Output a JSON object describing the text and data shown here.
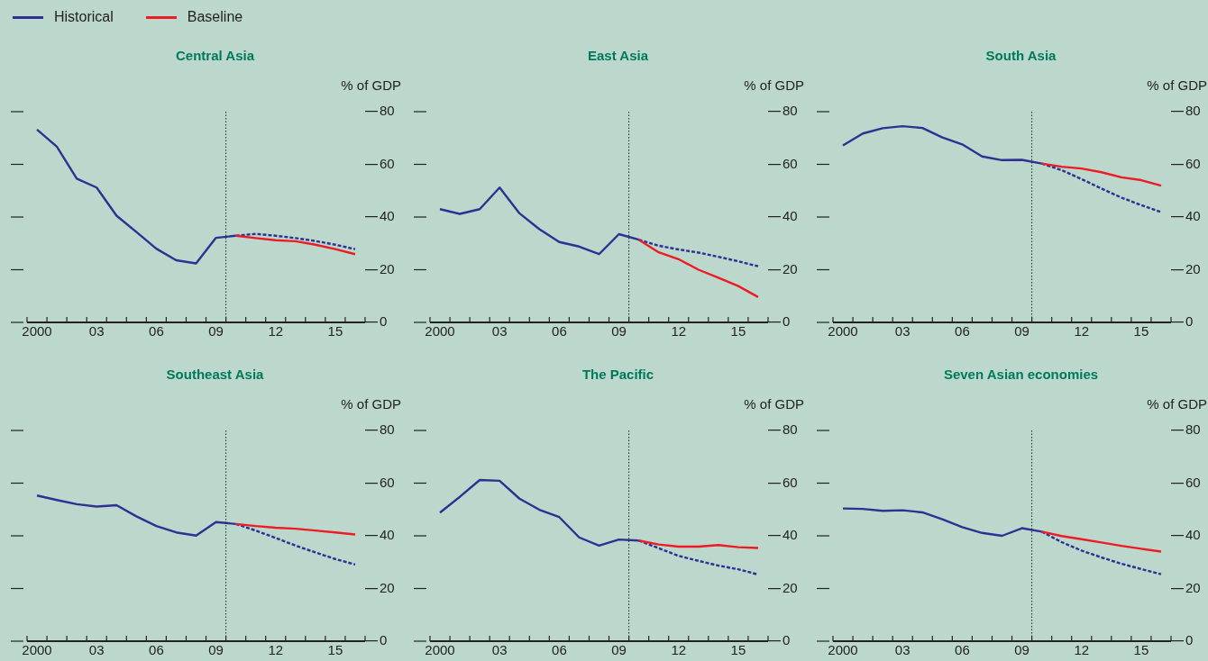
{
  "chart_data": [
    {
      "type": "line",
      "title": "Central Asia",
      "ylabel": "% of GDP",
      "legend": "top left",
      "x": [
        2000,
        2001,
        2002,
        2003,
        2004,
        2005,
        2006,
        2007,
        2008,
        2009,
        2010,
        2011,
        2012,
        2013,
        2014,
        2015,
        2016
      ],
      "xlim": [
        1999.5,
        2016.5
      ],
      "xticks": [
        {
          "value": 1999.5,
          "label": null
        },
        {
          "value": 2000,
          "label": "2000"
        },
        {
          "value": 2000.5,
          "label": null
        },
        {
          "value": 2001.5,
          "label": null
        },
        {
          "value": 2002.5,
          "label": null
        },
        {
          "value": 2003,
          "label": "03"
        },
        {
          "value": 2003.5,
          "label": null
        },
        {
          "value": 2004.5,
          "label": null
        },
        {
          "value": 2005.5,
          "label": null
        },
        {
          "value": 2006,
          "label": "06"
        },
        {
          "value": 2006.5,
          "label": null
        },
        {
          "value": 2007.5,
          "label": null
        },
        {
          "value": 2008.5,
          "label": null
        },
        {
          "value": 2009,
          "label": "09"
        },
        {
          "value": 2009.5,
          "label": null
        },
        {
          "value": 2010.5,
          "label": null
        },
        {
          "value": 2011.5,
          "label": null
        },
        {
          "value": 2012,
          "label": "12"
        },
        {
          "value": 2012.5,
          "label": null
        },
        {
          "value": 2013.5,
          "label": null
        },
        {
          "value": 2014.5,
          "label": null
        },
        {
          "value": 2015,
          "label": "15"
        },
        {
          "value": 2015.5,
          "label": null
        },
        {
          "value": 2016.5,
          "label": null
        }
      ],
      "ylim": [
        0,
        80
      ],
      "yticks": [
        0,
        20,
        40,
        60,
        80
      ],
      "ref_lines": [
        {
          "axis": "x",
          "value": 2009.5,
          "line_style": "dotted",
          "color": "#222222"
        }
      ],
      "series": [
        {
          "name": "Historical",
          "color": "#2e3192",
          "line_style": "solid",
          "values": [
            73.2,
            66.7,
            54.6,
            51.2,
            40.5,
            34.3,
            28,
            23.6,
            22.4,
            32.1,
            32.9,
            null,
            null,
            null,
            null,
            null,
            null
          ]
        },
        {
          "name": "Baseline",
          "color": "#ed1c24",
          "line_style": "solid",
          "values": [
            null,
            null,
            null,
            null,
            null,
            null,
            null,
            null,
            null,
            null,
            32.9,
            32,
            31.2,
            30.8,
            29.5,
            27.8,
            25.9
          ]
        },
        {
          "color": "#2e3192",
          "line_style": "dashed",
          "values": [
            null,
            null,
            null,
            null,
            null,
            null,
            null,
            null,
            null,
            null,
            32.9,
            33.6,
            32.9,
            32,
            30.9,
            29.5,
            27.8
          ]
        }
      ]
    },
    {
      "type": "line",
      "title": "East Asia",
      "ylabel": "% of GDP",
      "x": [
        2000,
        2001,
        2002,
        2003,
        2004,
        2005,
        2006,
        2007,
        2008,
        2009,
        2010,
        2011,
        2012,
        2013,
        2014,
        2015,
        2016
      ],
      "xlim": [
        1999.5,
        2016.5
      ],
      "xticks": [
        {
          "value": 1999.5,
          "label": null
        },
        {
          "value": 2000,
          "label": "2000"
        },
        {
          "value": 2000.5,
          "label": null
        },
        {
          "value": 2001.5,
          "label": null
        },
        {
          "value": 2002.5,
          "label": null
        },
        {
          "value": 2003,
          "label": "03"
        },
        {
          "value": 2003.5,
          "label": null
        },
        {
          "value": 2004.5,
          "label": null
        },
        {
          "value": 2005.5,
          "label": null
        },
        {
          "value": 2006,
          "label": "06"
        },
        {
          "value": 2006.5,
          "label": null
        },
        {
          "value": 2007.5,
          "label": null
        },
        {
          "value": 2008.5,
          "label": null
        },
        {
          "value": 2009,
          "label": "09"
        },
        {
          "value": 2009.5,
          "label": null
        },
        {
          "value": 2010.5,
          "label": null
        },
        {
          "value": 2011.5,
          "label": null
        },
        {
          "value": 2012,
          "label": "12"
        },
        {
          "value": 2012.5,
          "label": null
        },
        {
          "value": 2013.5,
          "label": null
        },
        {
          "value": 2014.5,
          "label": null
        },
        {
          "value": 2015,
          "label": "15"
        },
        {
          "value": 2015.5,
          "label": null
        },
        {
          "value": 2016.5,
          "label": null
        }
      ],
      "ylim": [
        0,
        80
      ],
      "yticks": [
        0,
        20,
        40,
        60,
        80
      ],
      "ref_lines": [
        {
          "axis": "x",
          "value": 2009.5,
          "line_style": "dotted",
          "color": "#222222"
        }
      ],
      "series": [
        {
          "color": "#2e3192",
          "line_style": "solid",
          "values": [
            43,
            41.2,
            43,
            51.2,
            41.4,
            35.4,
            30.5,
            28.8,
            25.9,
            33.5,
            31.4,
            null,
            null,
            null,
            null,
            null,
            null
          ]
        },
        {
          "color": "#ed1c24",
          "line_style": "solid",
          "values": [
            null,
            null,
            null,
            null,
            null,
            null,
            null,
            null,
            null,
            null,
            31.4,
            26.6,
            24,
            20,
            17,
            13.8,
            9.6
          ]
        },
        {
          "color": "#2e3192",
          "line_style": "dashed",
          "values": [
            null,
            null,
            null,
            null,
            null,
            null,
            null,
            null,
            null,
            null,
            31.4,
            29.1,
            27.7,
            26.5,
            24.9,
            23.2,
            21.3
          ]
        }
      ]
    },
    {
      "type": "line",
      "title": "South Asia",
      "ylabel": "% of GDP",
      "x": [
        2000,
        2001,
        2002,
        2003,
        2004,
        2005,
        2006,
        2007,
        2008,
        2009,
        2010,
        2011,
        2012,
        2013,
        2014,
        2015,
        2016
      ],
      "xlim": [
        1999.5,
        2016.5
      ],
      "xticks": [
        {
          "value": 1999.5,
          "label": null
        },
        {
          "value": 2000,
          "label": "2000"
        },
        {
          "value": 2000.5,
          "label": null
        },
        {
          "value": 2001.5,
          "label": null
        },
        {
          "value": 2002.5,
          "label": null
        },
        {
          "value": 2003,
          "label": "03"
        },
        {
          "value": 2003.5,
          "label": null
        },
        {
          "value": 2004.5,
          "label": null
        },
        {
          "value": 2005.5,
          "label": null
        },
        {
          "value": 2006,
          "label": "06"
        },
        {
          "value": 2006.5,
          "label": null
        },
        {
          "value": 2007.5,
          "label": null
        },
        {
          "value": 2008.5,
          "label": null
        },
        {
          "value": 2009,
          "label": "09"
        },
        {
          "value": 2009.5,
          "label": null
        },
        {
          "value": 2010.5,
          "label": null
        },
        {
          "value": 2011.5,
          "label": null
        },
        {
          "value": 2012,
          "label": "12"
        },
        {
          "value": 2012.5,
          "label": null
        },
        {
          "value": 2013.5,
          "label": null
        },
        {
          "value": 2014.5,
          "label": null
        },
        {
          "value": 2015,
          "label": "15"
        },
        {
          "value": 2015.5,
          "label": null
        },
        {
          "value": 2016.5,
          "label": null
        }
      ],
      "ylim": [
        0,
        80
      ],
      "yticks": [
        0,
        20,
        40,
        60,
        80
      ],
      "ref_lines": [
        {
          "axis": "x",
          "value": 2009.5,
          "line_style": "dotted",
          "color": "#222222"
        }
      ],
      "series": [
        {
          "color": "#2e3192",
          "line_style": "solid",
          "values": [
            67.2,
            71.7,
            73.7,
            74.5,
            73.8,
            70.2,
            67.6,
            63,
            61.6,
            61.7,
            60.3,
            null,
            null,
            null,
            null,
            null,
            null
          ]
        },
        {
          "color": "#ed1c24",
          "line_style": "solid",
          "values": [
            null,
            null,
            null,
            null,
            null,
            null,
            null,
            null,
            null,
            null,
            60.3,
            59.1,
            58.4,
            57,
            55.1,
            54,
            51.9
          ]
        },
        {
          "color": "#2e3192",
          "line_style": "dashed",
          "values": [
            null,
            null,
            null,
            null,
            null,
            null,
            null,
            null,
            null,
            null,
            60.3,
            57.8,
            54.4,
            50.8,
            47.4,
            44.5,
            41.9
          ]
        }
      ]
    },
    {
      "type": "line",
      "title": "Southeast Asia",
      "ylabel": "% of GDP",
      "x": [
        2000,
        2001,
        2002,
        2003,
        2004,
        2005,
        2006,
        2007,
        2008,
        2009,
        2010,
        2011,
        2012,
        2013,
        2014,
        2015,
        2016
      ],
      "xlim": [
        1999.5,
        2016.5
      ],
      "xticks": [
        {
          "value": 1999.5,
          "label": null
        },
        {
          "value": 2000,
          "label": "2000"
        },
        {
          "value": 2000.5,
          "label": null
        },
        {
          "value": 2001.5,
          "label": null
        },
        {
          "value": 2002.5,
          "label": null
        },
        {
          "value": 2003,
          "label": "03"
        },
        {
          "value": 2003.5,
          "label": null
        },
        {
          "value": 2004.5,
          "label": null
        },
        {
          "value": 2005.5,
          "label": null
        },
        {
          "value": 2006,
          "label": "06"
        },
        {
          "value": 2006.5,
          "label": null
        },
        {
          "value": 2007.5,
          "label": null
        },
        {
          "value": 2008.5,
          "label": null
        },
        {
          "value": 2009,
          "label": "09"
        },
        {
          "value": 2009.5,
          "label": null
        },
        {
          "value": 2010.5,
          "label": null
        },
        {
          "value": 2011.5,
          "label": null
        },
        {
          "value": 2012,
          "label": "12"
        },
        {
          "value": 2012.5,
          "label": null
        },
        {
          "value": 2013.5,
          "label": null
        },
        {
          "value": 2014.5,
          "label": null
        },
        {
          "value": 2015,
          "label": "15"
        },
        {
          "value": 2015.5,
          "label": null
        },
        {
          "value": 2016.5,
          "label": null
        }
      ],
      "ylim": [
        0,
        80
      ],
      "yticks": [
        0,
        20,
        40,
        60,
        80
      ],
      "ref_lines": [
        {
          "axis": "x",
          "value": 2009.5,
          "line_style": "dotted",
          "color": "#222222"
        }
      ],
      "series": [
        {
          "color": "#2e3192",
          "line_style": "solid",
          "values": [
            55.3,
            53.6,
            52,
            51.1,
            51.6,
            47.4,
            43.7,
            41.3,
            40.1,
            45.2,
            44.5,
            null,
            null,
            null,
            null,
            null,
            null
          ]
        },
        {
          "color": "#ed1c24",
          "line_style": "solid",
          "values": [
            null,
            null,
            null,
            null,
            null,
            null,
            null,
            null,
            null,
            null,
            44.5,
            43.7,
            43.1,
            42.7,
            42,
            41.3,
            40.5
          ]
        },
        {
          "color": "#2e3192",
          "line_style": "dashed",
          "values": [
            null,
            null,
            null,
            null,
            null,
            null,
            null,
            null,
            null,
            null,
            44.5,
            42,
            39.2,
            36.3,
            33.7,
            31.2,
            29.1
          ]
        }
      ]
    },
    {
      "type": "line",
      "title": "The Pacific",
      "ylabel": "% of GDP",
      "x": [
        2000,
        2001,
        2002,
        2003,
        2004,
        2005,
        2006,
        2007,
        2008,
        2009,
        2010,
        2011,
        2012,
        2013,
        2014,
        2015,
        2016
      ],
      "xlim": [
        1999.5,
        2016.5
      ],
      "xticks": [
        {
          "value": 1999.5,
          "label": null
        },
        {
          "value": 2000,
          "label": "2000"
        },
        {
          "value": 2000.5,
          "label": null
        },
        {
          "value": 2001.5,
          "label": null
        },
        {
          "value": 2002.5,
          "label": null
        },
        {
          "value": 2003,
          "label": "03"
        },
        {
          "value": 2003.5,
          "label": null
        },
        {
          "value": 2004.5,
          "label": null
        },
        {
          "value": 2005.5,
          "label": null
        },
        {
          "value": 2006,
          "label": "06"
        },
        {
          "value": 2006.5,
          "label": null
        },
        {
          "value": 2007.5,
          "label": null
        },
        {
          "value": 2008.5,
          "label": null
        },
        {
          "value": 2009,
          "label": "09"
        },
        {
          "value": 2009.5,
          "label": null
        },
        {
          "value": 2010.5,
          "label": null
        },
        {
          "value": 2011.5,
          "label": null
        },
        {
          "value": 2012,
          "label": "12"
        },
        {
          "value": 2012.5,
          "label": null
        },
        {
          "value": 2013.5,
          "label": null
        },
        {
          "value": 2014.5,
          "label": null
        },
        {
          "value": 2015,
          "label": "15"
        },
        {
          "value": 2015.5,
          "label": null
        },
        {
          "value": 2016.5,
          "label": null
        }
      ],
      "ylim": [
        0,
        80
      ],
      "yticks": [
        0,
        20,
        40,
        60,
        80
      ],
      "ref_lines": [
        {
          "axis": "x",
          "value": 2009.5,
          "line_style": "dotted",
          "color": "#222222"
        }
      ],
      "series": [
        {
          "color": "#2e3192",
          "line_style": "solid",
          "values": [
            48.8,
            54.8,
            61.2,
            60.9,
            54.1,
            49.9,
            47.1,
            39.4,
            36.3,
            38.6,
            38.2,
            null,
            null,
            null,
            null,
            null,
            null
          ]
        },
        {
          "color": "#ed1c24",
          "line_style": "solid",
          "values": [
            null,
            null,
            null,
            null,
            null,
            null,
            null,
            null,
            null,
            null,
            38.2,
            36.7,
            35.9,
            35.9,
            36.5,
            35.7,
            35.4
          ]
        },
        {
          "color": "#2e3192",
          "line_style": "dashed",
          "values": [
            null,
            null,
            null,
            null,
            null,
            null,
            null,
            null,
            null,
            null,
            38.2,
            35.3,
            32.4,
            30.5,
            28.7,
            27.3,
            25.3
          ]
        }
      ]
    },
    {
      "type": "line",
      "title": "Seven Asian economies",
      "ylabel": "% of GDP",
      "x": [
        2000,
        2001,
        2002,
        2003,
        2004,
        2005,
        2006,
        2007,
        2008,
        2009,
        2010,
        2011,
        2012,
        2013,
        2014,
        2015,
        2016
      ],
      "xlim": [
        1999.5,
        2016.5
      ],
      "xticks": [
        {
          "value": 1999.5,
          "label": null
        },
        {
          "value": 2000,
          "label": "2000"
        },
        {
          "value": 2000.5,
          "label": null
        },
        {
          "value": 2001.5,
          "label": null
        },
        {
          "value": 2002.5,
          "label": null
        },
        {
          "value": 2003,
          "label": "03"
        },
        {
          "value": 2003.5,
          "label": null
        },
        {
          "value": 2004.5,
          "label": null
        },
        {
          "value": 2005.5,
          "label": null
        },
        {
          "value": 2006,
          "label": "06"
        },
        {
          "value": 2006.5,
          "label": null
        },
        {
          "value": 2007.5,
          "label": null
        },
        {
          "value": 2008.5,
          "label": null
        },
        {
          "value": 2009,
          "label": "09"
        },
        {
          "value": 2009.5,
          "label": null
        },
        {
          "value": 2010.5,
          "label": null
        },
        {
          "value": 2011.5,
          "label": null
        },
        {
          "value": 2012,
          "label": "12"
        },
        {
          "value": 2012.5,
          "label": null
        },
        {
          "value": 2013.5,
          "label": null
        },
        {
          "value": 2014.5,
          "label": null
        },
        {
          "value": 2015,
          "label": "15"
        },
        {
          "value": 2015.5,
          "label": null
        },
        {
          "value": 2016.5,
          "label": null
        }
      ],
      "ylim": [
        0,
        80
      ],
      "yticks": [
        0,
        20,
        40,
        60,
        80
      ],
      "ref_lines": [
        {
          "axis": "x",
          "value": 2009.5,
          "line_style": "dotted",
          "color": "#222222"
        }
      ],
      "series": [
        {
          "color": "#2e3192",
          "line_style": "solid",
          "values": [
            50.4,
            50.2,
            49.5,
            49.7,
            48.9,
            46.3,
            43.3,
            41.1,
            40,
            42.9,
            41.6,
            null,
            null,
            null,
            null,
            null,
            null
          ]
        },
        {
          "color": "#ed1c24",
          "line_style": "solid",
          "values": [
            null,
            null,
            null,
            null,
            null,
            null,
            null,
            null,
            null,
            null,
            41.6,
            39.9,
            38.7,
            37.5,
            36.2,
            35.1,
            34
          ]
        },
        {
          "color": "#2e3192",
          "line_style": "dashed",
          "values": [
            null,
            null,
            null,
            null,
            null,
            null,
            null,
            null,
            null,
            null,
            41.6,
            37.6,
            34.4,
            31.8,
            29.4,
            27.4,
            25.4
          ]
        }
      ]
    }
  ]
}
